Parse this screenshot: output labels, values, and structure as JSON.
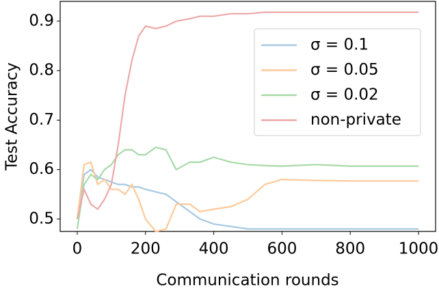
{
  "chart_data": {
    "type": "line",
    "xlabel": "Communication rounds",
    "ylabel": "Test Accuracy",
    "x": [
      0,
      20,
      40,
      60,
      80,
      100,
      120,
      140,
      160,
      180,
      200,
      230,
      260,
      290,
      330,
      360,
      400,
      450,
      500,
      550,
      600,
      700,
      800,
      900,
      1000
    ],
    "series": [
      {
        "name": "σ = 0.1",
        "color": "#a5c8e1",
        "values": [
          0.5,
          0.59,
          0.6,
          0.585,
          0.58,
          0.575,
          0.57,
          0.57,
          0.565,
          0.565,
          0.56,
          0.555,
          0.55,
          0.535,
          0.515,
          0.5,
          0.49,
          0.485,
          0.48,
          0.48,
          0.48,
          0.48,
          0.48,
          0.48,
          0.48
        ]
      },
      {
        "name": "σ = 0.05",
        "color": "#ffc999",
        "values": [
          0.5,
          0.61,
          0.615,
          0.57,
          0.58,
          0.56,
          0.56,
          0.55,
          0.57,
          0.54,
          0.5,
          0.475,
          0.48,
          0.53,
          0.53,
          0.515,
          0.52,
          0.525,
          0.54,
          0.57,
          0.58,
          0.578,
          0.577,
          0.577,
          0.577
        ]
      },
      {
        "name": "σ = 0.02",
        "color": "#a6d9a6",
        "values": [
          0.48,
          0.57,
          0.59,
          0.58,
          0.6,
          0.61,
          0.63,
          0.64,
          0.64,
          0.63,
          0.63,
          0.645,
          0.64,
          0.6,
          0.615,
          0.615,
          0.625,
          0.615,
          0.61,
          0.608,
          0.607,
          0.61,
          0.607,
          0.607,
          0.607
        ]
      },
      {
        "name": "non-private",
        "color": "#eda8a8",
        "values": [
          0.5,
          0.56,
          0.53,
          0.52,
          0.54,
          0.57,
          0.65,
          0.75,
          0.82,
          0.87,
          0.89,
          0.885,
          0.89,
          0.9,
          0.905,
          0.91,
          0.91,
          0.915,
          0.915,
          0.918,
          0.918,
          0.918,
          0.918,
          0.918,
          0.918
        ]
      }
    ],
    "xlim": [
      -50,
      1050
    ],
    "xticks": [
      0,
      200,
      400,
      600,
      800,
      1000
    ],
    "ylim": [
      0.475,
      0.94
    ],
    "yticks": [
      0.5,
      0.6,
      0.7,
      0.8,
      0.9
    ],
    "legend": "upper right"
  }
}
